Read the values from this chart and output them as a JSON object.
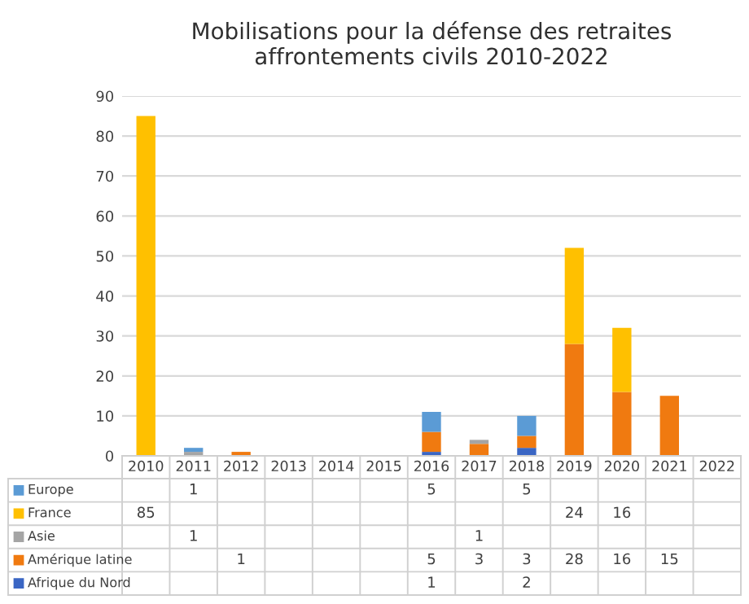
{
  "chart_data": {
    "type": "bar",
    "stacked": true,
    "title": "Mobilisations pour la défense des retraites\naffrontements civils 2010-2022",
    "categories": [
      "2010",
      "2011",
      "2012",
      "2013",
      "2014",
      "2015",
      "2016",
      "2017",
      "2018",
      "2019",
      "2020",
      "2021",
      "2022"
    ],
    "series": [
      {
        "name": "Afrique du Nord",
        "color": "#3a66c4",
        "values": [
          null,
          null,
          null,
          null,
          null,
          null,
          1,
          null,
          2,
          null,
          null,
          null,
          null
        ]
      },
      {
        "name": "Amérique latine",
        "color": "#f07a10",
        "values": [
          null,
          null,
          1,
          null,
          null,
          null,
          5,
          3,
          3,
          28,
          16,
          15,
          null
        ]
      },
      {
        "name": "Asie",
        "color": "#a5a5a5",
        "values": [
          null,
          1,
          null,
          null,
          null,
          null,
          null,
          1,
          null,
          null,
          null,
          null,
          null
        ]
      },
      {
        "name": "France",
        "color": "#ffc000",
        "values": [
          85,
          null,
          null,
          null,
          null,
          null,
          null,
          null,
          null,
          24,
          16,
          null,
          null
        ]
      },
      {
        "name": "Europe",
        "color": "#5b9bd5",
        "values": [
          null,
          1,
          null,
          null,
          null,
          null,
          5,
          null,
          5,
          null,
          null,
          null,
          null
        ]
      }
    ],
    "ylim": [
      0,
      90
    ],
    "yticks": [
      0,
      10,
      20,
      30,
      40,
      50,
      60,
      70,
      80,
      90
    ],
    "grid": "y",
    "data_labels": true,
    "legend": "bottom"
  }
}
